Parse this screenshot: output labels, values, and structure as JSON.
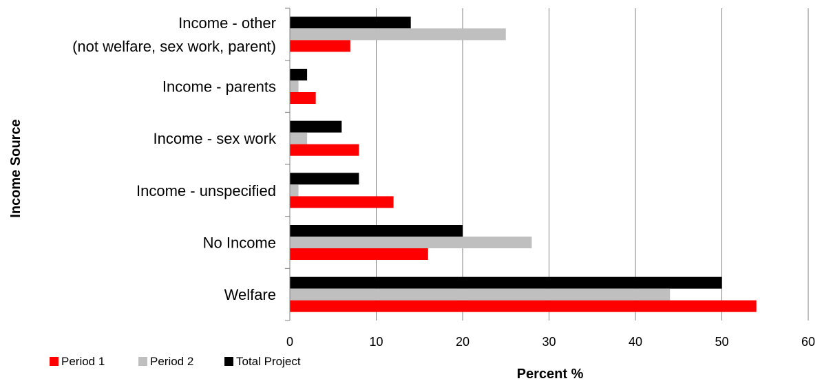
{
  "chart_data": {
    "type": "bar",
    "orientation": "horizontal",
    "categories": [
      "Income - other\n(not welfare, sex work, parent)",
      "Income - parents",
      "Income - sex work",
      "Income - unspecified",
      "No Income",
      "Welfare"
    ],
    "series": [
      {
        "name": "Period 1",
        "color": "#ff0000",
        "values": [
          7,
          3,
          8,
          12,
          16,
          54
        ]
      },
      {
        "name": "Period 2",
        "color": "#bfbfbf",
        "values": [
          25,
          1,
          2,
          1,
          28,
          44
        ]
      },
      {
        "name": "Total Project",
        "color": "#000000",
        "values": [
          14,
          2,
          6,
          8,
          20,
          50
        ]
      }
    ],
    "xlabel": "Percent %",
    "ylabel": "Income Source",
    "xlim": [
      0,
      60
    ],
    "xticks": [
      0,
      10,
      20,
      30,
      40,
      50,
      60
    ],
    "grid": "vertical",
    "legend_position": "bottom-left"
  }
}
